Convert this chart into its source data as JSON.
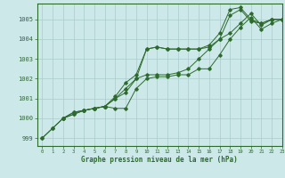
{
  "xlabel": "Graphe pression niveau de la mer (hPa)",
  "bg_color": "#cce8e8",
  "grid_color": "#aacccc",
  "line_color": "#2d6b2d",
  "xlim": [
    -0.5,
    23
  ],
  "ylim": [
    998.6,
    1005.8
  ],
  "yticks": [
    999,
    1000,
    1001,
    1002,
    1003,
    1004,
    1005
  ],
  "xticks": [
    0,
    1,
    2,
    3,
    4,
    5,
    6,
    7,
    8,
    9,
    10,
    11,
    12,
    13,
    14,
    15,
    16,
    17,
    18,
    19,
    20,
    21,
    22,
    23
  ],
  "lines": [
    {
      "x": [
        0,
        1,
        2,
        3,
        4,
        5,
        6,
        7,
        8,
        9,
        10,
        11,
        12,
        13,
        14,
        15,
        16,
        17,
        18,
        19,
        20,
        21,
        22,
        23
      ],
      "y": [
        999.0,
        999.5,
        1000.0,
        1000.3,
        1000.4,
        1000.5,
        1000.6,
        1001.0,
        1001.3,
        1002.0,
        1003.5,
        1003.6,
        1003.5,
        1003.5,
        1003.5,
        1003.5,
        1003.6,
        1004.0,
        1005.2,
        1005.5,
        1004.9,
        1004.8,
        1005.0,
        1005.0
      ]
    },
    {
      "x": [
        0,
        1,
        2,
        3,
        4,
        5,
        6,
        7,
        8,
        9,
        10,
        11,
        12,
        13,
        14,
        15,
        16,
        17,
        18,
        19,
        20,
        21,
        22,
        23
      ],
      "y": [
        999.0,
        999.5,
        1000.0,
        1000.3,
        1000.4,
        1000.5,
        1000.6,
        1001.1,
        1001.8,
        1002.2,
        1003.5,
        1003.6,
        1003.5,
        1003.5,
        1003.5,
        1003.5,
        1003.7,
        1004.3,
        1005.5,
        1005.6,
        1005.0,
        1004.8,
        1005.0,
        1005.0
      ]
    },
    {
      "x": [
        2,
        3,
        4,
        5,
        6,
        7,
        8,
        9,
        10,
        11,
        12,
        13,
        14,
        15,
        16,
        17,
        18,
        19,
        20,
        21,
        22,
        23
      ],
      "y": [
        1000.0,
        1000.2,
        1000.4,
        1000.5,
        1000.6,
        1000.5,
        1000.5,
        1001.5,
        1002.0,
        1002.1,
        1002.1,
        1002.2,
        1002.2,
        1002.5,
        1002.5,
        1003.2,
        1004.0,
        1004.6,
        1005.1,
        1004.5,
        1004.8,
        1005.0
      ]
    },
    {
      "x": [
        2,
        3,
        4,
        5,
        6,
        7,
        8,
        9,
        10,
        11,
        12,
        13,
        14,
        15,
        16,
        17,
        18,
        19,
        20,
        21,
        22,
        23
      ],
      "y": [
        1000.0,
        1000.2,
        1000.4,
        1000.5,
        1000.6,
        1001.0,
        1001.5,
        1002.0,
        1002.2,
        1002.2,
        1002.2,
        1002.3,
        1002.5,
        1003.0,
        1003.5,
        1004.0,
        1004.3,
        1004.8,
        1005.3,
        1004.7,
        1005.0,
        1005.0
      ]
    }
  ]
}
